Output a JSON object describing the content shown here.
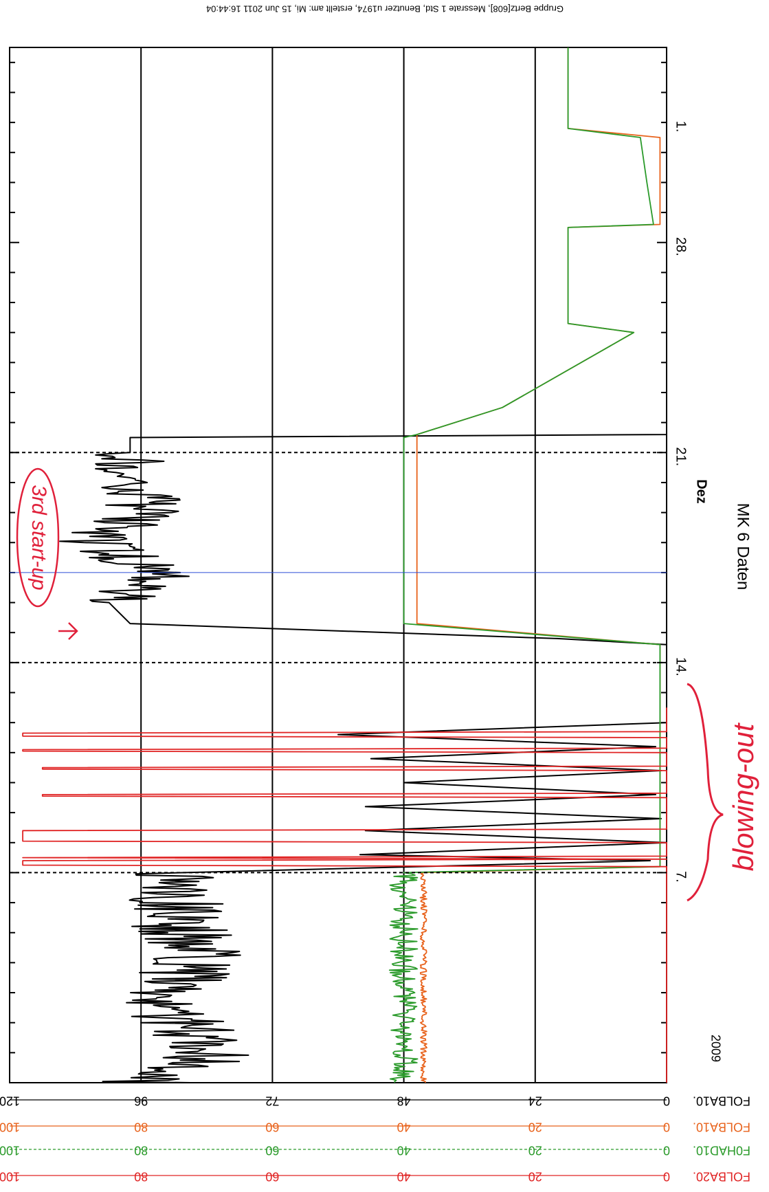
{
  "header_note": "Gruppe Bertz[608], Messrate 1 Std, Benutzer u1974, erstellt am: Mi, 15 Jun 2011 16:44:04",
  "chart_data": {
    "type": "line",
    "title": "MK 6 Daten",
    "xlabel": "Dez",
    "year_label": "2009",
    "orientation": "rotated-90",
    "x": {
      "ticks": [
        "1.",
        "28.",
        "21.",
        "14.",
        "7."
      ],
      "start_date": "2009-11-30",
      "end_date": "2010-01-04"
    },
    "axes": [
      {
        "name": "FOLBA10.",
        "color": "#000000",
        "ticks": [
          "0",
          "24",
          "48",
          "72",
          "96",
          "120"
        ],
        "ylim": [
          0,
          120
        ]
      },
      {
        "name": "FOLBA10.",
        "color": "#e8621b",
        "ticks": [
          "0",
          "20",
          "40",
          "60",
          "80",
          "100"
        ],
        "ylim": [
          0,
          100
        ]
      },
      {
        "name": "F0HAD10.",
        "color": "#2a9a2a",
        "ticks": [
          "0",
          "20",
          "40",
          "60",
          "80",
          "100"
        ],
        "ylim": [
          0,
          100
        ]
      },
      {
        "name": "FOLBA20.",
        "color": "#e02424",
        "ticks": [
          "0",
          "20",
          "40",
          "60",
          "80",
          "100"
        ],
        "ylim": [
          0,
          100
        ]
      }
    ],
    "series": [
      {
        "name": "FOLBA10.",
        "color": "#000000",
        "axis": 0,
        "points": [
          [
            0.0,
            96
          ],
          [
            1.0,
            82
          ],
          [
            2.5,
            92
          ],
          [
            4.0,
            86
          ],
          [
            5.5,
            90
          ],
          [
            7.0,
            88
          ],
          [
            7.4,
            3
          ],
          [
            7.6,
            56
          ],
          [
            8.0,
            0
          ],
          [
            8.4,
            55
          ],
          [
            8.8,
            1
          ],
          [
            9.2,
            55
          ],
          [
            9.6,
            2
          ],
          [
            10.0,
            48
          ],
          [
            10.4,
            1
          ],
          [
            10.8,
            54
          ],
          [
            11.2,
            2
          ],
          [
            11.6,
            60
          ],
          [
            12.0,
            0
          ],
          [
            12.5,
            0
          ],
          [
            13.5,
            0
          ],
          [
            14.6,
            0
          ],
          [
            14.8,
            20
          ],
          [
            15.3,
            98
          ],
          [
            16.0,
            100
          ],
          [
            17.0,
            93
          ],
          [
            18.0,
            105
          ],
          [
            19.0,
            95
          ],
          [
            20.0,
            97
          ],
          [
            21.0,
            98
          ],
          [
            21.5,
            98
          ],
          [
            21.6,
            0
          ],
          [
            25.0,
            0
          ],
          [
            28.5,
            0
          ],
          [
            31.0,
            0
          ],
          [
            34.5,
            0
          ]
        ],
        "noise": [
          {
            "from": 0.0,
            "to": 7.0,
            "amp": 9
          },
          {
            "from": 15.4,
            "to": 21.4,
            "amp": 7
          }
        ]
      },
      {
        "name": "FOLBA10.",
        "color": "#e8621b",
        "axis": 1,
        "points": [
          [
            0.0,
            37
          ],
          [
            3.0,
            37
          ],
          [
            7.0,
            37
          ],
          [
            7.2,
            1
          ],
          [
            12.0,
            1
          ],
          [
            14.6,
            1
          ],
          [
            15.3,
            38
          ],
          [
            21.5,
            38
          ],
          [
            21.6,
            38
          ],
          [
            22.5,
            25
          ],
          [
            25.0,
            5
          ],
          [
            25.3,
            15
          ],
          [
            28.5,
            15
          ],
          [
            28.6,
            1
          ],
          [
            31.5,
            1
          ],
          [
            31.8,
            15
          ],
          [
            34.5,
            15
          ]
        ],
        "noise": [
          {
            "from": 0.0,
            "to": 7.0,
            "amp": 0.5
          }
        ]
      },
      {
        "name": "F0HAD10.",
        "color": "#2a9a2a",
        "axis": 2,
        "points": [
          [
            0.0,
            40
          ],
          [
            3.0,
            40
          ],
          [
            7.0,
            40
          ],
          [
            7.2,
            1
          ],
          [
            12.0,
            1
          ],
          [
            14.6,
            1
          ],
          [
            15.3,
            40
          ],
          [
            21.5,
            40
          ],
          [
            21.6,
            38
          ],
          [
            22.5,
            25
          ],
          [
            25.0,
            5
          ],
          [
            25.3,
            15
          ],
          [
            28.5,
            15
          ],
          [
            28.6,
            2
          ],
          [
            30.0,
            3
          ],
          [
            31.5,
            4
          ],
          [
            31.8,
            15
          ],
          [
            34.5,
            15
          ]
        ],
        "noise": [
          {
            "from": 0.0,
            "to": 7.0,
            "amp": 2.2
          },
          {
            "from": 15.4,
            "to": 21.4,
            "amp": 2.2
          }
        ]
      },
      {
        "name": "FOLBA20.",
        "color": "#e02424",
        "axis": 3,
        "points": [
          [
            0.0,
            0
          ],
          [
            7.2,
            0
          ],
          [
            7.25,
            98
          ],
          [
            7.4,
            98
          ],
          [
            7.45,
            0
          ],
          [
            7.5,
            98
          ],
          [
            7.55,
            0
          ],
          [
            8.0,
            0
          ],
          [
            8.05,
            98
          ],
          [
            8.4,
            98
          ],
          [
            8.45,
            0
          ],
          [
            9.5,
            0
          ],
          [
            9.55,
            95
          ],
          [
            9.6,
            95
          ],
          [
            9.65,
            0
          ],
          [
            10.4,
            0
          ],
          [
            10.45,
            95
          ],
          [
            10.5,
            95
          ],
          [
            10.55,
            0
          ],
          [
            11.0,
            0
          ],
          [
            11.05,
            98
          ],
          [
            11.1,
            98
          ],
          [
            11.15,
            0
          ],
          [
            11.5,
            0
          ],
          [
            11.55,
            98
          ],
          [
            11.65,
            98
          ],
          [
            11.7,
            0
          ],
          [
            12.5,
            0
          ]
        ]
      }
    ],
    "vertical_markers": [
      {
        "style": "dashed",
        "date": "2009-12-07"
      },
      {
        "style": "dashed",
        "date": "2009-12-14"
      },
      {
        "style": "dashed",
        "date": "2009-12-21"
      },
      {
        "style": "blue",
        "date": "2009-12-17"
      }
    ],
    "annotations": [
      {
        "text": "3rd start-up",
        "color": "#e0203a"
      },
      {
        "text": "blowing-out",
        "color": "#e0203a"
      }
    ]
  }
}
